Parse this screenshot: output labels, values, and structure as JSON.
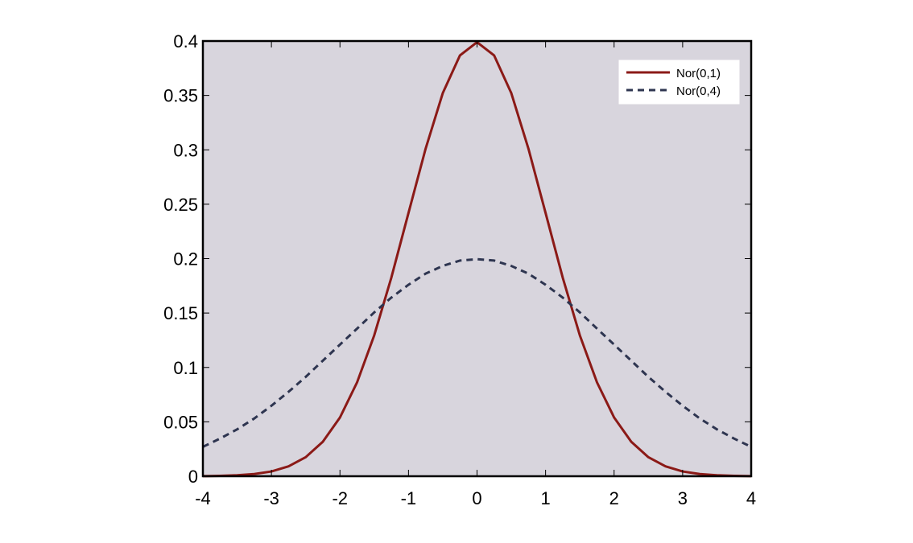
{
  "chart_data": {
    "type": "line",
    "title": "",
    "xlabel": "",
    "ylabel": "",
    "xlim": [
      -4,
      4
    ],
    "ylim": [
      0,
      0.4
    ],
    "xticks": [
      -4,
      -3,
      -2,
      -1,
      0,
      1,
      2,
      3,
      4
    ],
    "xtick_labels": [
      "-4",
      "-3",
      "-2",
      "-1",
      "0",
      "1",
      "2",
      "3",
      "4"
    ],
    "yticks": [
      0,
      0.05,
      0.1,
      0.15,
      0.2,
      0.25,
      0.3,
      0.35,
      0.4
    ],
    "ytick_labels": [
      "0",
      "0.05",
      "0.1",
      "0.15",
      "0.2",
      "0.25",
      "0.3",
      "0.35",
      "0.4"
    ],
    "grid": false,
    "legend_position": "top-right",
    "plot_background": "#d8d5dd",
    "series": [
      {
        "name": "Nor(0,1)",
        "color": "#8b1a17",
        "style": "solid",
        "x": [
          -4,
          -3.75,
          -3.5,
          -3.25,
          -3,
          -2.75,
          -2.5,
          -2.25,
          -2,
          -1.75,
          -1.5,
          -1.25,
          -1,
          -0.75,
          -0.5,
          -0.25,
          0,
          0.25,
          0.5,
          0.75,
          1,
          1.25,
          1.5,
          1.75,
          2,
          2.25,
          2.5,
          2.75,
          3,
          3.25,
          3.5,
          3.75,
          4
        ],
        "y": [
          0.0001,
          0.0004,
          0.0009,
          0.002,
          0.0044,
          0.0091,
          0.0175,
          0.0317,
          0.054,
          0.0863,
          0.1295,
          0.1826,
          0.242,
          0.3011,
          0.3521,
          0.3867,
          0.3989,
          0.3867,
          0.3521,
          0.3011,
          0.242,
          0.1826,
          0.1295,
          0.0863,
          0.054,
          0.0317,
          0.0175,
          0.0091,
          0.0044,
          0.002,
          0.0009,
          0.0004,
          0.0001
        ]
      },
      {
        "name": "Nor(0,4)",
        "color": "#2e3550",
        "style": "dashed",
        "x": [
          -4,
          -3.75,
          -3.5,
          -3.25,
          -3,
          -2.75,
          -2.5,
          -2.25,
          -2,
          -1.75,
          -1.5,
          -1.25,
          -1,
          -0.75,
          -0.5,
          -0.25,
          0,
          0.25,
          0.5,
          0.75,
          1,
          1.25,
          1.5,
          1.75,
          2,
          2.25,
          2.5,
          2.75,
          3,
          3.25,
          3.5,
          3.75,
          4
        ],
        "y": [
          0.027,
          0.0346,
          0.0431,
          0.0531,
          0.0648,
          0.0776,
          0.0913,
          0.1062,
          0.121,
          0.1357,
          0.1506,
          0.1642,
          0.176,
          0.1862,
          0.1933,
          0.1982,
          0.1995,
          0.1982,
          0.1933,
          0.1862,
          0.176,
          0.1642,
          0.1506,
          0.1357,
          0.121,
          0.1062,
          0.0913,
          0.0776,
          0.0648,
          0.0531,
          0.0431,
          0.0346,
          0.027
        ]
      }
    ]
  }
}
